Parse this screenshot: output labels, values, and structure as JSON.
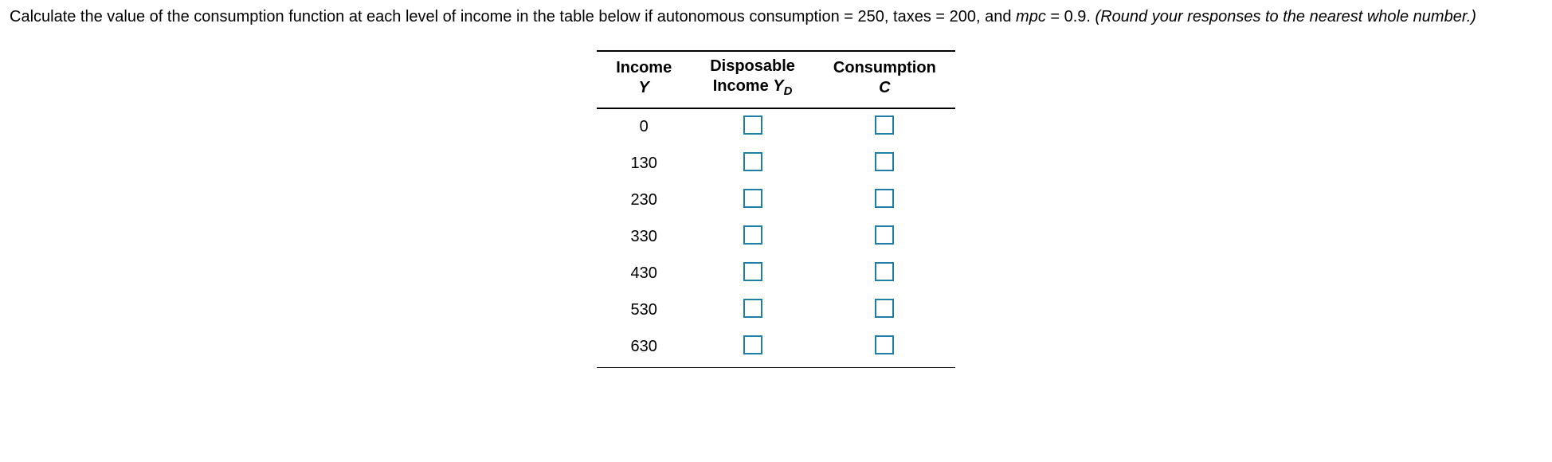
{
  "prompt": {
    "main": "Calculate the value of the consumption function at each level of income in the table below if autonomous consumption = 250, taxes = 200, and ",
    "mpc_label": "mpc",
    "mpc_rest": " = 0.9. ",
    "round_note": "(Round your responses to the nearest whole number.)"
  },
  "table": {
    "headers": {
      "income_line1": "Income",
      "income_line2": "Y",
      "disp_line1": "Disposable",
      "disp_line2_a": "Income ",
      "disp_line2_b": "Y",
      "disp_line2_sub": "D",
      "cons_line1": "Consumption",
      "cons_line2": "C"
    },
    "income_values": [
      "0",
      "130",
      "230",
      "330",
      "430",
      "530",
      "630"
    ]
  },
  "colors": {
    "input_border": "#1f7ea3"
  }
}
